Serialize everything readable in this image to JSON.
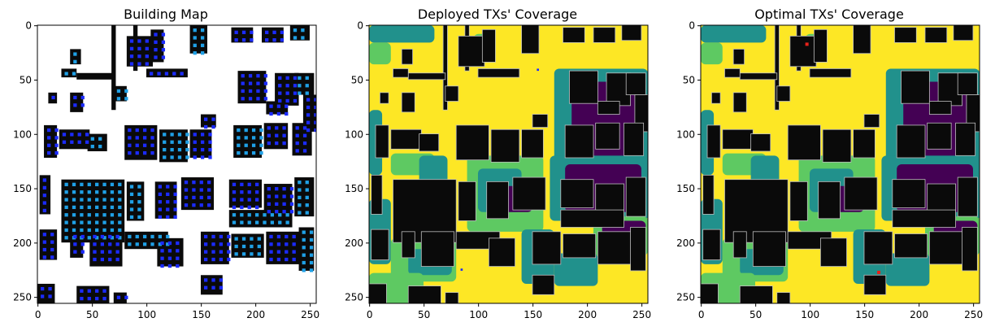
{
  "colors": {
    "building": "#0a0a0a",
    "tx_marker": "#1b2bff",
    "tx_marker_alt": "#1fa0e6",
    "coverage_high": "#fde725",
    "coverage_midhigh": "#5ec962",
    "coverage_mid": "#21918c",
    "coverage_low": "#440154",
    "optimal_tx": "#e8221a"
  },
  "chart_data": [
    {
      "type": "heatmap",
      "title": "Building Map",
      "xlim": [
        0,
        255
      ],
      "ylim": [
        255,
        0
      ],
      "x_ticks": [
        0,
        50,
        100,
        150,
        200,
        250
      ],
      "y_ticks": [
        0,
        50,
        100,
        150,
        200,
        250
      ],
      "grid": false,
      "legend": "none"
    },
    {
      "type": "heatmap",
      "title": "Deployed TXs' Coverage",
      "xlim": [
        0,
        255
      ],
      "ylim": [
        255,
        0
      ],
      "x_ticks": [
        0,
        50,
        100,
        150,
        200,
        250
      ],
      "y_ticks": [
        0,
        50,
        100,
        150,
        200,
        250
      ],
      "grid": false,
      "legend": "none"
    },
    {
      "type": "heatmap",
      "title": "Optimal TXs' Coverage",
      "xlim": [
        0,
        255
      ],
      "ylim": [
        255,
        0
      ],
      "x_ticks": [
        0,
        50,
        100,
        150,
        200,
        250
      ],
      "y_ticks": [
        0,
        50,
        100,
        150,
        200,
        250
      ],
      "grid": false,
      "legend": "none"
    }
  ]
}
